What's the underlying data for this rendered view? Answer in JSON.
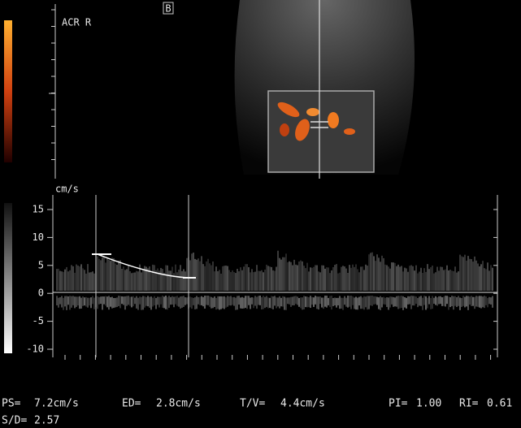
{
  "image_labels": {
    "probe_label": "ACR R",
    "marker": "B"
  },
  "spectrum": {
    "unit": "cm/s",
    "yticks": [
      "15",
      "10",
      "5",
      "0",
      "-5",
      "-10"
    ]
  },
  "measurements": [
    {
      "label": "PS=",
      "value": "7.2cm/s"
    },
    {
      "label": "ED=",
      "value": "2.8cm/s"
    },
    {
      "label": "T/V=",
      "value": "4.4cm/s"
    },
    {
      "label": "PI=",
      "value": "1.00"
    },
    {
      "label": "RI=",
      "value": "0.61"
    },
    {
      "label": "S/D=",
      "value": "2.57"
    }
  ]
}
